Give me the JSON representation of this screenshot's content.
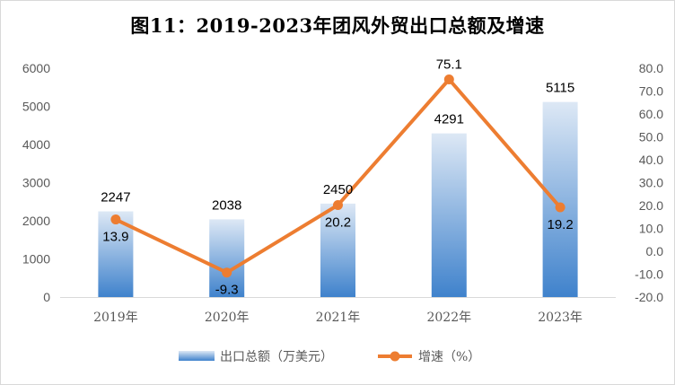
{
  "chart_data": {
    "type": "bar",
    "title": "图11：2019-2023年团风外贸出口总额及增速",
    "categories": [
      "2019年",
      "2020年",
      "2021年",
      "2022年",
      "2023年"
    ],
    "series": [
      {
        "name": "出口总额（万美元）",
        "type": "bar",
        "axis": "left",
        "values": [
          2247,
          2038,
          2450,
          4291,
          5115
        ]
      },
      {
        "name": "增速（%）",
        "type": "line",
        "axis": "right",
        "values": [
          13.9,
          -9.3,
          20.2,
          75.1,
          19.2
        ]
      }
    ],
    "y_left": {
      "ylim": [
        0,
        6000
      ],
      "ticks": [
        "0",
        "1000",
        "2000",
        "3000",
        "4000",
        "5000",
        "6000"
      ]
    },
    "y_right": {
      "ylim": [
        -20,
        80
      ],
      "ticks": [
        "-20.0",
        "-10.0",
        "0.0",
        "10.0",
        "20.0",
        "30.0",
        "40.0",
        "50.0",
        "60.0",
        "70.0",
        "80.0"
      ]
    },
    "legend": "bottom",
    "grid": false,
    "colors": {
      "bar_top": "#dde8f5",
      "bar_bottom": "#3f82cc",
      "line": "#ed7d31"
    }
  }
}
